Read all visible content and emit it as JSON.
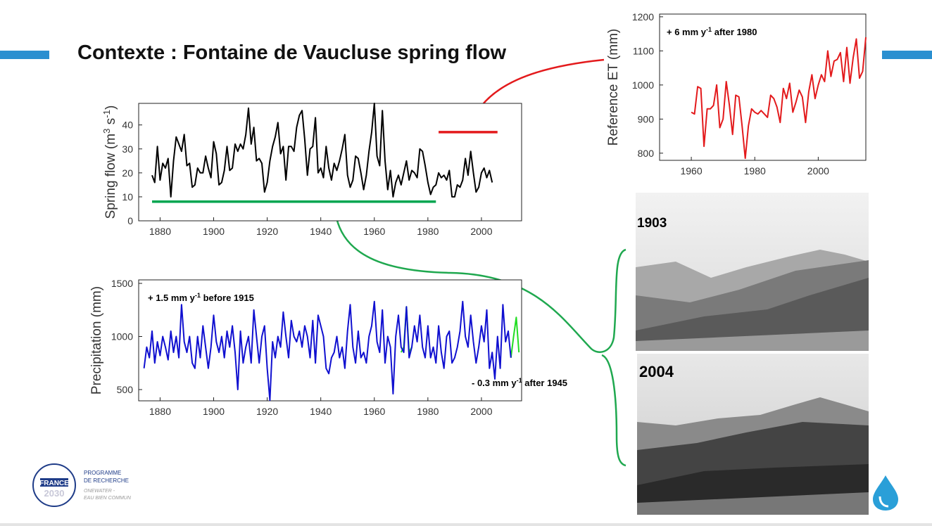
{
  "title": "Contexte : Fontaine de Vaucluse spring flow",
  "photos": [
    {
      "label": "1903"
    },
    {
      "label": "2004"
    }
  ],
  "logo": {
    "lines": [
      "FRANCE",
      "2030",
      "PROGRAMME",
      "DE RECHERCHE",
      "ONEWATER -",
      "EAU BIEN COMMUN"
    ]
  },
  "chart_data": [
    {
      "type": "line",
      "ylabel": [
        "Spring flow (m",
        "3",
        " s",
        "-1",
        ")"
      ],
      "xlim": [
        1872,
        2015
      ],
      "ylim": [
        0,
        49
      ],
      "xticks": [
        1880,
        1900,
        1920,
        1940,
        1960,
        1980,
        2000
      ],
      "yticks": [
        0,
        10,
        20,
        30,
        40
      ],
      "series": [
        {
          "color": "#000000",
          "x": [
            1877,
            1878,
            1879,
            1880,
            1881,
            1882,
            1883,
            1884,
            1885,
            1886,
            1887,
            1888,
            1889,
            1890,
            1891,
            1892,
            1893,
            1894,
            1895,
            1896,
            1897,
            1898,
            1899,
            1900,
            1901,
            1902,
            1903,
            1904,
            1905,
            1906,
            1907,
            1908,
            1909,
            1910,
            1911,
            1912,
            1913,
            1914,
            1915,
            1916,
            1917,
            1918,
            1919,
            1920,
            1921,
            1922,
            1923,
            1924,
            1925,
            1926,
            1927,
            1928,
            1929,
            1930,
            1931,
            1932,
            1933,
            1934,
            1935,
            1936,
            1937,
            1938,
            1939,
            1940,
            1941,
            1942,
            1943,
            1944,
            1945,
            1946,
            1947,
            1948,
            1949,
            1950,
            1951,
            1952,
            1953,
            1954,
            1955,
            1956,
            1957,
            1958,
            1959,
            1960,
            1961,
            1962,
            1963,
            1964,
            1965,
            1966,
            1967,
            1968,
            1969,
            1970,
            1971,
            1972,
            1973,
            1974,
            1975,
            1976,
            1977,
            1978,
            1979,
            1980,
            1981,
            1982,
            1983,
            1984,
            1985,
            1986,
            1987,
            1988,
            1989,
            1990,
            1991,
            1992,
            1993,
            1994,
            1995,
            1996,
            1997,
            1998,
            1999,
            2000,
            2001,
            2002,
            2003,
            2004
          ],
          "values": [
            19,
            16,
            31,
            17,
            24,
            22,
            26,
            10,
            25,
            35,
            32,
            29,
            36,
            23,
            24,
            14,
            15,
            22,
            20,
            20,
            27,
            22,
            18,
            33,
            28,
            15,
            16,
            21,
            31,
            21,
            22,
            32,
            29,
            32,
            30,
            36,
            47,
            32,
            39,
            25,
            26,
            24,
            12,
            16,
            25,
            31,
            35,
            41,
            28,
            31,
            17,
            31,
            31,
            29,
            39,
            44,
            46,
            34,
            19,
            30,
            31,
            43,
            20,
            22,
            18,
            31,
            22,
            17,
            24,
            21,
            25,
            30,
            36,
            19,
            14,
            17,
            27,
            26,
            20,
            13,
            19,
            29,
            37,
            49,
            27,
            23,
            46,
            25,
            13,
            21,
            10,
            16,
            19,
            15,
            20,
            25,
            17,
            21,
            20,
            18,
            30,
            29,
            23,
            16,
            11,
            14,
            15,
            20,
            18,
            19,
            17,
            21,
            10,
            10,
            15,
            14,
            17,
            26,
            19,
            29,
            20,
            12,
            14,
            20,
            22,
            18,
            21,
            16
          ]
        }
      ],
      "segments": [
        {
          "color": "#00a650",
          "x": [
            1877,
            1983
          ],
          "y": 8
        },
        {
          "color": "#e31a1c",
          "x": [
            1984,
            2006
          ],
          "y": 37
        }
      ]
    },
    {
      "type": "line",
      "ylabel": [
        "Reference ET (mm)"
      ],
      "xlim": [
        1950,
        2015
      ],
      "ylim": [
        779,
        1208
      ],
      "xticks": [
        1960,
        1980,
        2000
      ],
      "yticks": [
        800,
        900,
        1000,
        1100,
        1200
      ],
      "annotations": [
        [
          "+ 6 mm y",
          "-1",
          " after 1980"
        ]
      ],
      "series": [
        {
          "color": "#e31a1c",
          "x": [
            1960,
            1961,
            1962,
            1963,
            1964,
            1965,
            1966,
            1967,
            1968,
            1969,
            1970,
            1971,
            1972,
            1973,
            1974,
            1975,
            1976,
            1977,
            1978,
            1979,
            1980,
            1981,
            1982,
            1983,
            1984,
            1985,
            1986,
            1987,
            1988,
            1989,
            1990,
            1991,
            1992,
            1993,
            1994,
            1995,
            1996,
            1997,
            1998,
            1999,
            2000,
            2001,
            2002,
            2003,
            2004,
            2005,
            2006,
            2007,
            2008,
            2009,
            2010,
            2011,
            2012,
            2013,
            2014,
            2015
          ],
          "values": [
            920,
            915,
            995,
            990,
            820,
            930,
            930,
            940,
            1000,
            875,
            900,
            1010,
            940,
            855,
            970,
            965,
            880,
            785,
            880,
            930,
            920,
            915,
            925,
            915,
            905,
            970,
            960,
            935,
            890,
            990,
            960,
            1005,
            920,
            950,
            985,
            965,
            890,
            980,
            1030,
            960,
            1000,
            1030,
            1010,
            1100,
            1025,
            1070,
            1075,
            1095,
            1010,
            1110,
            1005,
            1080,
            1135,
            1020,
            1040,
            1140
          ]
        }
      ]
    },
    {
      "type": "line",
      "ylabel": [
        "Precipitation (mm)"
      ],
      "xlim": [
        1872,
        2015
      ],
      "ylim": [
        394,
        1533
      ],
      "xticks": [
        1880,
        1900,
        1920,
        1940,
        1960,
        1980,
        2000
      ],
      "yticks": [
        500,
        1000,
        1500
      ],
      "annotations": [
        [
          "+ 1.5 mm y",
          "-1",
          " before 1915"
        ],
        [
          "- 0.3 mm y",
          "-1",
          " after 1945"
        ]
      ],
      "series": [
        {
          "color": "#22dd22",
          "x": [
            1970,
            1971,
            1972,
            1973,
            1974,
            1990,
            2011,
            2012,
            2013,
            2014
          ],
          "values": [
            850,
            900,
            1280,
            850,
            900,
            null,
            800,
            1000,
            1180,
            850
          ]
        },
        {
          "color": "#1010d0",
          "x": [
            1874,
            1875,
            1876,
            1877,
            1878,
            1879,
            1880,
            1881,
            1882,
            1883,
            1884,
            1885,
            1886,
            1887,
            1888,
            1889,
            1890,
            1891,
            1892,
            1893,
            1894,
            1895,
            1896,
            1897,
            1898,
            1899,
            1900,
            1901,
            1902,
            1903,
            1904,
            1905,
            1906,
            1907,
            1908,
            1909,
            1910,
            1911,
            1912,
            1913,
            1914,
            1915,
            1916,
            1917,
            1918,
            1919,
            1920,
            1921,
            1922,
            1923,
            1924,
            1925,
            1926,
            1927,
            1928,
            1929,
            1930,
            1931,
            1932,
            1933,
            1934,
            1935,
            1936,
            1937,
            1938,
            1939,
            1940,
            1941,
            1942,
            1943,
            1944,
            1945,
            1946,
            1947,
            1948,
            1949,
            1950,
            1951,
            1952,
            1953,
            1954,
            1955,
            1956,
            1957,
            1958,
            1959,
            1960,
            1961,
            1962,
            1963,
            1964,
            1965,
            1966,
            1967,
            1968,
            1969,
            1970,
            1971,
            1972,
            1973,
            1974,
            1975,
            1976,
            1977,
            1978,
            1979,
            1980,
            1981,
            1982,
            1983,
            1984,
            1985,
            1986,
            1987,
            1988,
            1989,
            1990,
            1991,
            1992,
            1993,
            1994,
            1995,
            1996,
            1997,
            1998,
            1999,
            2000,
            2001,
            2002,
            2003,
            2004,
            2005,
            2006,
            2007,
            2008,
            2009,
            2010,
            2011
          ],
          "values": [
            700,
            900,
            800,
            1050,
            750,
            950,
            820,
            1000,
            900,
            780,
            1050,
            850,
            1000,
            800,
            1300,
            950,
            850,
            1000,
            750,
            700,
            1000,
            800,
            1100,
            900,
            700,
            900,
            1200,
            950,
            850,
            1000,
            800,
            1050,
            900,
            1100,
            850,
            500,
            1050,
            750,
            900,
            1000,
            750,
            1250,
            1000,
            750,
            1000,
            1100,
            700,
            400,
            950,
            800,
            1000,
            900,
            1230,
            1000,
            800,
            1150,
            1000,
            950,
            1050,
            900,
            1100,
            1000,
            800,
            1150,
            750,
            1200,
            1100,
            1000,
            700,
            650,
            800,
            850,
            1000,
            800,
            900,
            700,
            1050,
            1300,
            900,
            750,
            1050,
            800,
            850,
            750,
            1000,
            1100,
            1330,
            950,
            850,
            1250,
            750,
            1000,
            900,
            460,
            1000,
            1200,
            900,
            850,
            1280,
            800,
            900,
            1100,
            950,
            1200,
            900,
            800,
            1100,
            800,
            900,
            750,
            1100,
            850,
            700,
            1000,
            1050,
            750,
            800,
            900,
            1050,
            1330,
            1000,
            900,
            1200,
            950,
            750,
            900,
            1100,
            950,
            1250,
            700,
            850,
            600,
            1000,
            700,
            1300,
            950,
            1050,
            800
          ]
        }
      ]
    }
  ]
}
